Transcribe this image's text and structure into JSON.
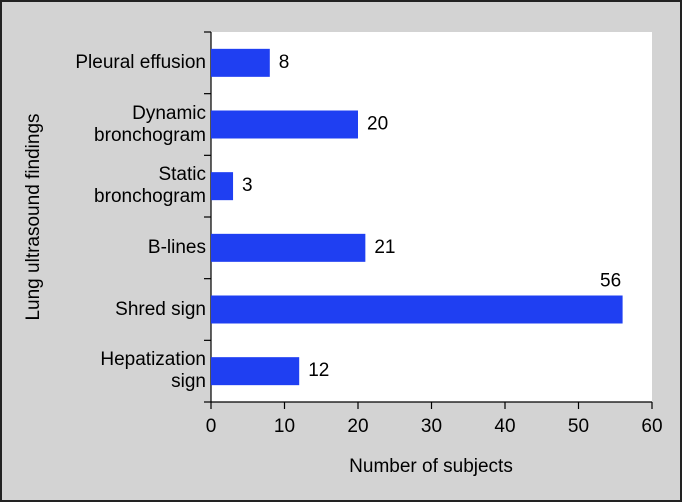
{
  "chart_data": {
    "type": "barh",
    "categories": [
      "Pleural effusion",
      "Dynamic\nbronchogram",
      "Static\nbronchogram",
      "B-lines",
      "Shred sign",
      "Hepatization\nsign"
    ],
    "values": [
      8,
      20,
      3,
      21,
      56,
      12
    ],
    "color": "#1f3ff2",
    "xlabel": "Number of subjects",
    "ylabel": "Lung ultrasound findings",
    "xlim": [
      0,
      60
    ],
    "xticks": [
      0,
      10,
      20,
      30,
      40,
      50,
      60
    ]
  }
}
